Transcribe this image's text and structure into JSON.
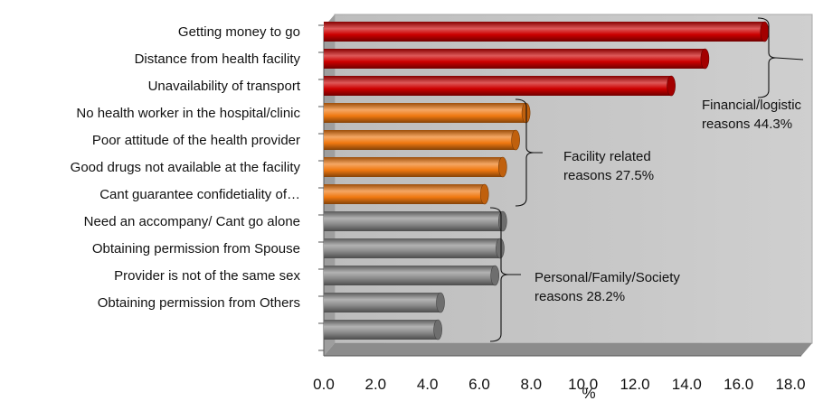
{
  "chart_data": {
    "type": "bar",
    "orientation": "horizontal",
    "title": "",
    "xlabel": "%",
    "ylabel": "",
    "xlim": [
      0,
      18
    ],
    "xticks": [
      "0.0",
      "2.0",
      "4.0",
      "6.0",
      "8.0",
      "10.0",
      "12.0",
      "14.0",
      "16.0",
      "18.0"
    ],
    "grid": false,
    "categories": [
      "Getting money to go",
      "Distance from health facility",
      "Unavailability of transport ",
      "No health worker in the hospital/clinic",
      "Poor attitude of the health provider",
      "Good drugs not available at the facility",
      "Cant guarantee confidetiality of…",
      "Need an accompany/ Cant go alone",
      "Obtaining permission from Spouse",
      "Provider is not of the same sex",
      "Obtaining permission from Others",
      ""
    ],
    "values": [
      17.0,
      14.7,
      13.4,
      7.8,
      7.4,
      6.9,
      6.2,
      6.9,
      6.8,
      6.6,
      4.5,
      4.4
    ],
    "bar_colors": [
      "#cc0000",
      "#cc0000",
      "#cc0000",
      "#f07810",
      "#f07810",
      "#f07810",
      "#f07810",
      "#8a8a8a",
      "#8a8a8a",
      "#8a8a8a",
      "#8a8a8a",
      "#8a8a8a"
    ],
    "colors": {
      "plot_bg": "#c0c0c0",
      "financial": "#cc0000",
      "facility": "#f07810",
      "personal": "#8a8a8a"
    },
    "groups": [
      {
        "lines": [
          "Financial/logistic",
          "reasons  44.3%"
        ],
        "from": 0,
        "to": 2
      },
      {
        "lines": [
          "Facility related",
          "reasons  27.5%"
        ],
        "from": 3,
        "to": 6
      },
      {
        "lines": [
          "Personal/Family/Society",
          "reasons 28.2%"
        ],
        "from": 7,
        "to": 11
      }
    ]
  }
}
